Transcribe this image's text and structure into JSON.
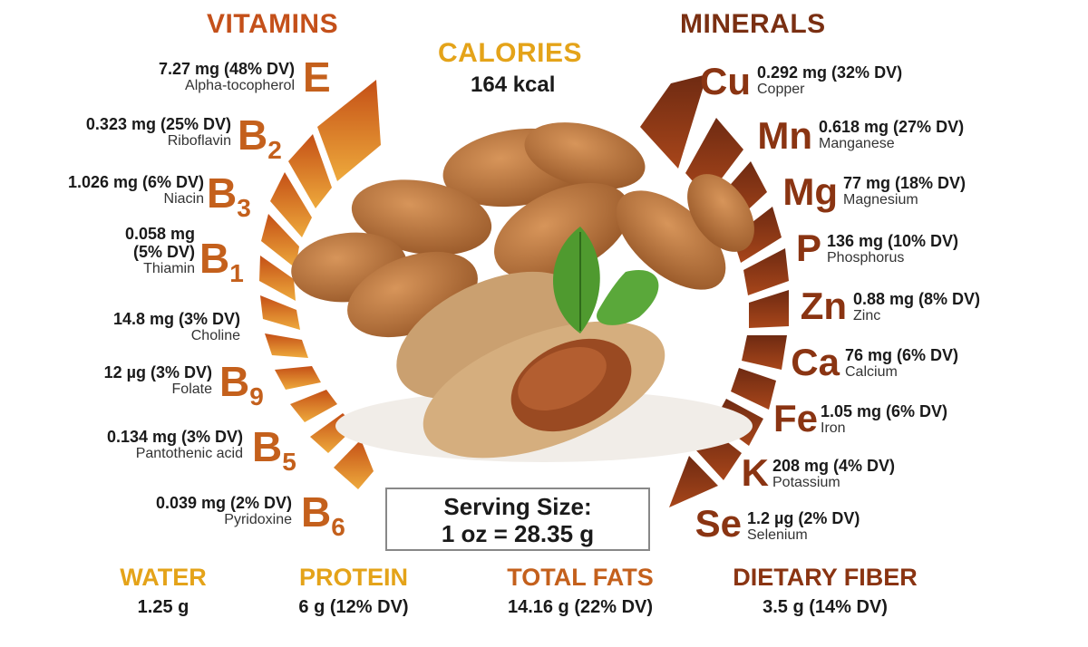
{
  "vitamins": {
    "heading": "VITAMINS",
    "items": [
      {
        "value": "7.27 mg (48% DV)",
        "name": "Alpha-tocopherol",
        "letter": "E",
        "sub": ""
      },
      {
        "value": "0.323 mg (25% DV)",
        "name": "Riboflavin",
        "letter": "B",
        "sub": "2"
      },
      {
        "value": "1.026 mg (6% DV)",
        "name": "Niacin",
        "letter": "B",
        "sub": "3"
      },
      {
        "value": "0.058 mg",
        "value2": "(5% DV)",
        "name": "Thiamin",
        "letter": "B",
        "sub": "1"
      },
      {
        "value": "14.8 mg (3% DV)",
        "name": "Choline",
        "letter": "",
        "sub": ""
      },
      {
        "value": "12 µg (3% DV)",
        "name": "Folate",
        "letter": "B",
        "sub": "9"
      },
      {
        "value": "0.134 mg (3% DV)",
        "name": "Pantothenic acid",
        "letter": "B",
        "sub": "5"
      },
      {
        "value": "0.039 mg (2% DV)",
        "name": "Pyridoxine",
        "letter": "B",
        "sub": "6"
      }
    ]
  },
  "minerals": {
    "heading": "MINERALS",
    "items": [
      {
        "symbol": "Cu",
        "value": "0.292 mg (32% DV)",
        "name": "Copper"
      },
      {
        "symbol": "Mn",
        "value": "0.618 mg (27% DV)",
        "name": "Manganese"
      },
      {
        "symbol": "Mg",
        "value": "77 mg (18% DV)",
        "name": "Magnesium"
      },
      {
        "symbol": "P",
        "value": "136 mg (10% DV)",
        "name": "Phosphorus"
      },
      {
        "symbol": "Zn",
        "value": "0.88 mg (8% DV)",
        "name": "Zinc"
      },
      {
        "symbol": "Ca",
        "value": "76 mg (6% DV)",
        "name": "Calcium"
      },
      {
        "symbol": "Fe",
        "value": "1.05 mg (6% DV)",
        "name": "Iron"
      },
      {
        "symbol": "K",
        "value": "208 mg (4% DV)",
        "name": "Potassium"
      },
      {
        "symbol": "Se",
        "value": "1.2 µg (2% DV)",
        "name": "Selenium"
      }
    ]
  },
  "calories": {
    "heading": "CALORIES",
    "value": "164 kcal"
  },
  "serving": {
    "line1": "Serving Size:",
    "line2": "1 oz = 28.35 g"
  },
  "bottom": [
    {
      "heading": "WATER",
      "value": "1.25 g",
      "color": "#e4a319"
    },
    {
      "heading": "PROTEIN",
      "value": "6 g (12% DV)",
      "color": "#e4a319"
    },
    {
      "heading": "TOTAL FATS",
      "value": "14.16 g (22% DV)",
      "color": "#c4601c"
    },
    {
      "heading": "DIETARY FIBER",
      "value": "3.5 g (14% DV)",
      "color": "#8a3412"
    }
  ],
  "colors": {
    "vitamin_bar": "#c95a18",
    "vitamin_bar_light": "#e8a23a",
    "mineral_bar": "#7a2f12",
    "almond": "#b8743a",
    "leaf": "#4f9a2f"
  }
}
